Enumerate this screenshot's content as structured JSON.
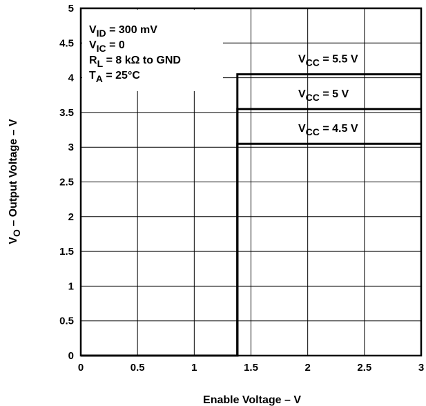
{
  "chart_data": {
    "type": "line",
    "title": "",
    "xlabel": "Enable Voltage – V",
    "ylabel": {
      "main": "V",
      "sub": "O",
      "rest": " – Output Voltage – V"
    },
    "xlim": [
      0,
      3
    ],
    "ylim": [
      0,
      5
    ],
    "x_ticks": [
      "0",
      "0.5",
      "1",
      "1.5",
      "2",
      "2.5",
      "3"
    ],
    "y_ticks": [
      "0",
      "0.5",
      "1",
      "1.5",
      "2",
      "2.5",
      "3",
      "3.5",
      "4",
      "4.5",
      "5"
    ],
    "grid": true,
    "threshold_x": 1.38,
    "conditions": [
      {
        "main": "V",
        "sub": "ID",
        "rest": " = 300 mV"
      },
      {
        "main": "V",
        "sub": "IC",
        "rest": " = 0"
      },
      {
        "main": "R",
        "sub": "L",
        "rest": " = 8 kΩ to GND"
      },
      {
        "main": "T",
        "sub": "A",
        "rest": " = 25°C"
      }
    ],
    "series": [
      {
        "label": {
          "main": "V",
          "sub": "CC",
          "rest": " = 5.5 V"
        },
        "x": [
          0,
          1.38,
          1.38,
          3
        ],
        "y": [
          0,
          0,
          4.05,
          4.05
        ]
      },
      {
        "label": {
          "main": "V",
          "sub": "CC",
          "rest": " = 5 V"
        },
        "x": [
          0,
          1.38,
          1.38,
          3
        ],
        "y": [
          0,
          0,
          3.55,
          3.55
        ]
      },
      {
        "label": {
          "main": "V",
          "sub": "CC",
          "rest": " = 4.5 V"
        },
        "x": [
          0,
          1.38,
          1.38,
          3
        ],
        "y": [
          0,
          0,
          3.05,
          3.05
        ]
      }
    ]
  }
}
